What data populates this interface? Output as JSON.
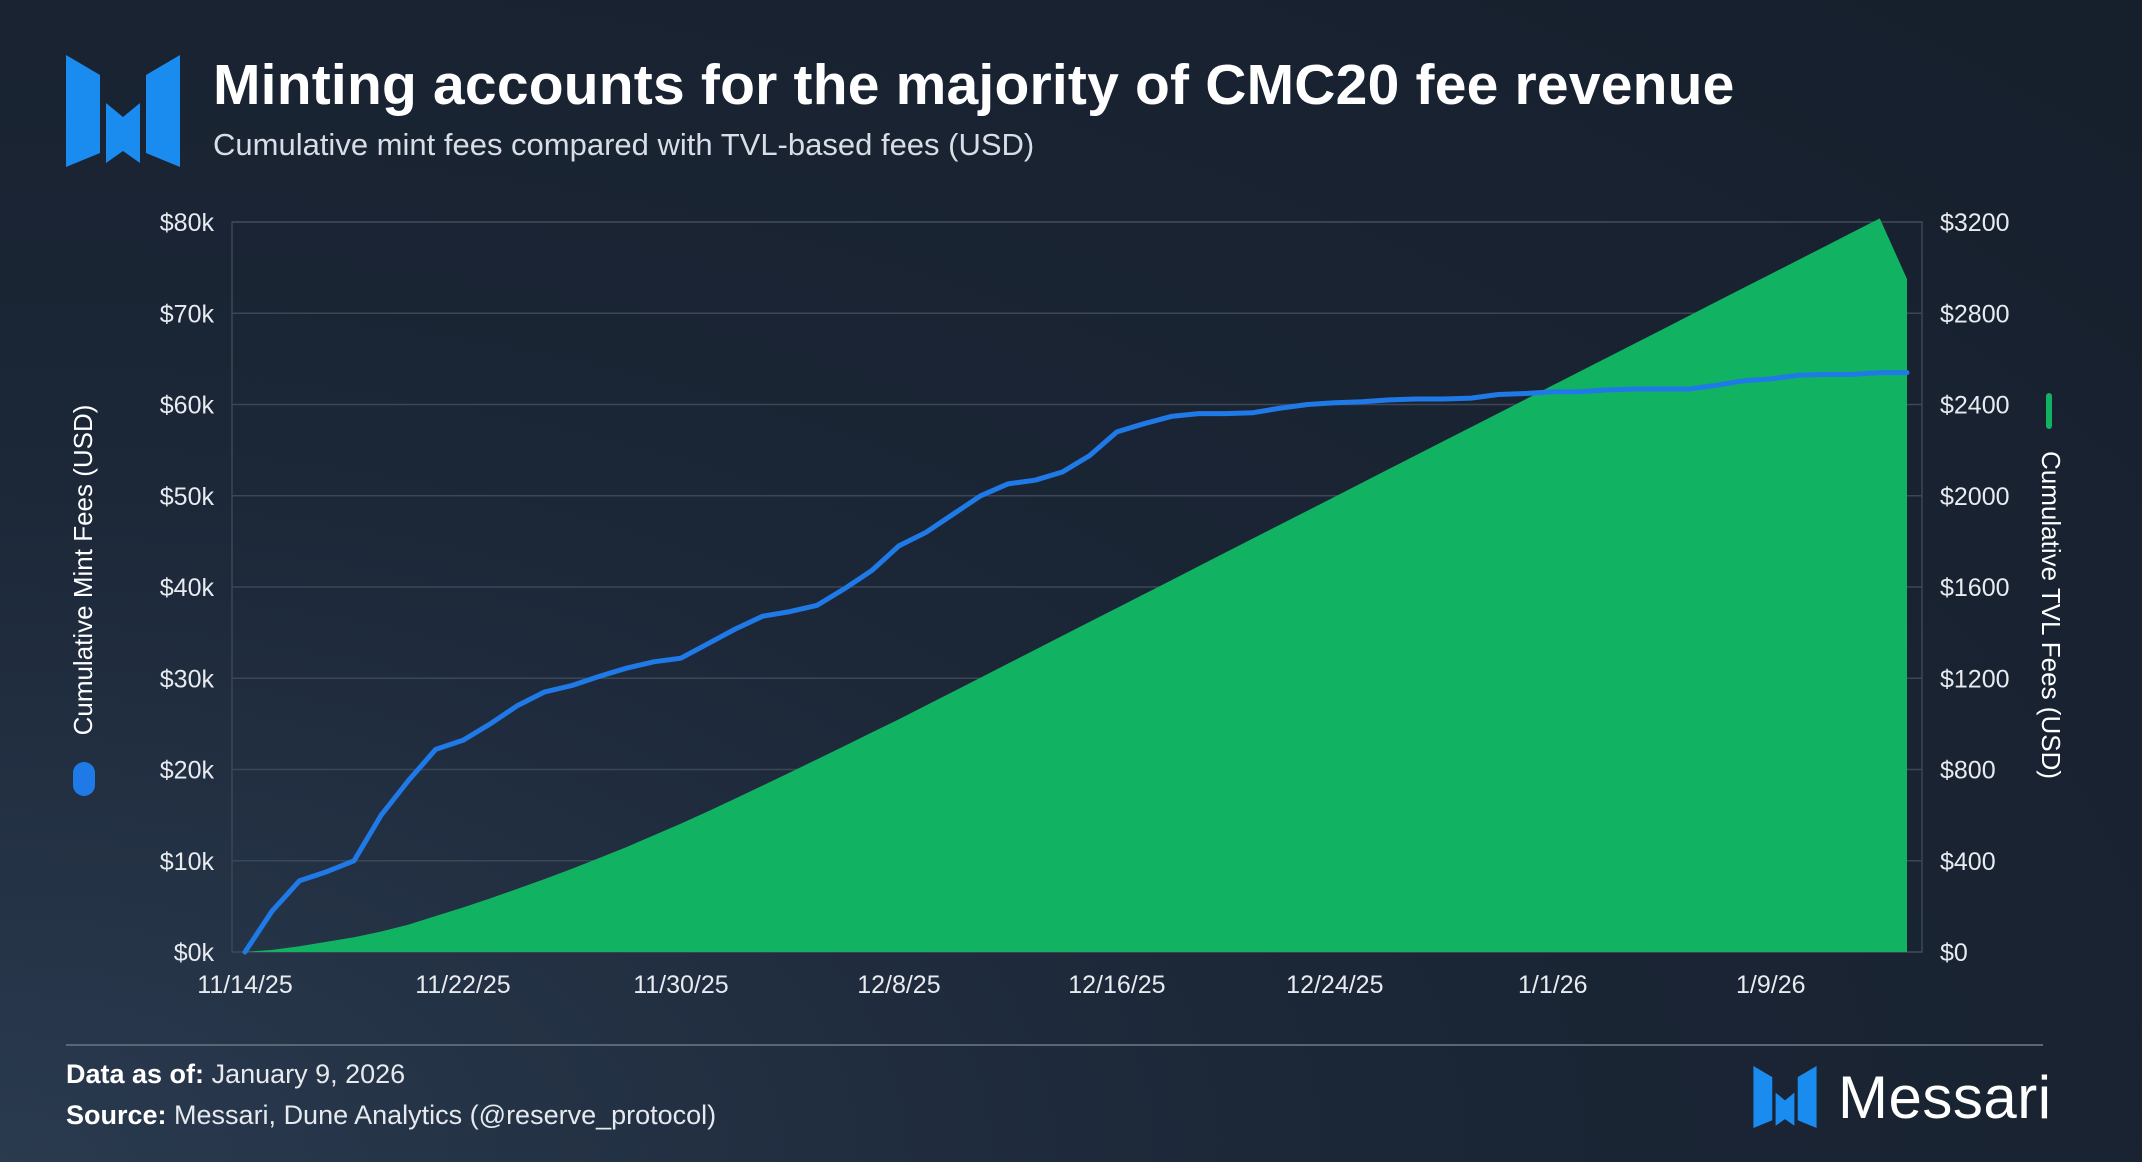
{
  "header": {
    "title": "Minting accounts for the majority of CMC20 fee revenue",
    "subtitle": "Cumulative mint fees compared with TVL-based fees (USD)"
  },
  "colors": {
    "mint_line": "#1f7ae8",
    "tvl_area": "#12b263",
    "brand_blue": "#1a8cf0"
  },
  "chart_data": {
    "type": "line+area",
    "x_tick_labels": [
      "11/14/25",
      "11/22/25",
      "11/30/25",
      "12/8/25",
      "12/16/25",
      "12/24/25",
      "1/1/26",
      "1/9/26"
    ],
    "x_start": "11/14/25",
    "num_days": 61,
    "y_left": {
      "label": "Cumulative Mint Fees (USD)",
      "ticks": [
        "$0k",
        "$10k",
        "$20k",
        "$30k",
        "$40k",
        "$50k",
        "$60k",
        "$70k",
        "$80k"
      ],
      "ylim": [
        0,
        80000
      ]
    },
    "y_right": {
      "label": "Cumulative TVL Fees (USD)",
      "ticks": [
        "$0",
        "$400",
        "$800",
        "$1200",
        "$1600",
        "$2000",
        "$2400",
        "$2800",
        "$3200"
      ],
      "ylim": [
        0,
        3200
      ]
    },
    "series": [
      {
        "name": "Cumulative Mint Fees (USD)",
        "type": "line",
        "axis": "left",
        "values": [
          0,
          4500,
          7800,
          8800,
          10000,
          15000,
          18800,
          22200,
          23200,
          25000,
          27000,
          28500,
          29200,
          30200,
          31100,
          31800,
          32200,
          33800,
          35400,
          36800,
          37300,
          38000,
          39800,
          41800,
          44500,
          46000,
          48000,
          50000,
          51300,
          51700,
          52600,
          54400,
          57000,
          57900,
          58700,
          59000,
          59000,
          59100,
          59600,
          60000,
          60200,
          60300,
          60500,
          60600,
          60600,
          60700,
          61100,
          61200,
          61400,
          61400,
          61600,
          61700,
          61700,
          61700,
          62100,
          62600,
          62800,
          63200,
          63300,
          63300,
          63500,
          63500
        ]
      },
      {
        "name": "Cumulative TVL Fees (USD)",
        "type": "area",
        "axis": "right",
        "values": [
          0,
          9,
          25,
          45,
          65,
          90,
          120,
          158,
          195,
          235,
          277,
          320,
          365,
          412,
          460,
          511,
          563,
          617,
          673,
          730,
          787,
          845,
          903,
          962,
          1020,
          1081,
          1142,
          1203,
          1264,
          1325,
          1386,
          1447,
          1508,
          1569,
          1630,
          1691,
          1752,
          1813,
          1874,
          1935,
          1996,
          2057,
          2118,
          2179,
          2240,
          2301,
          2362,
          2423,
          2484,
          2545,
          2606,
          2667,
          2728,
          2789,
          2850,
          2911,
          2972,
          3033,
          3094,
          3155,
          3216,
          2950
        ]
      }
    ],
    "title": "Minting accounts for the majority of CMC20 fee revenue"
  },
  "footer": {
    "data_as_of_label": "Data as of:",
    "data_as_of_value": "January 9, 2026",
    "source_label": "Source:",
    "source_value": "Messari, Dune Analytics (@reserve_protocol)",
    "brand_name": "Messari"
  }
}
